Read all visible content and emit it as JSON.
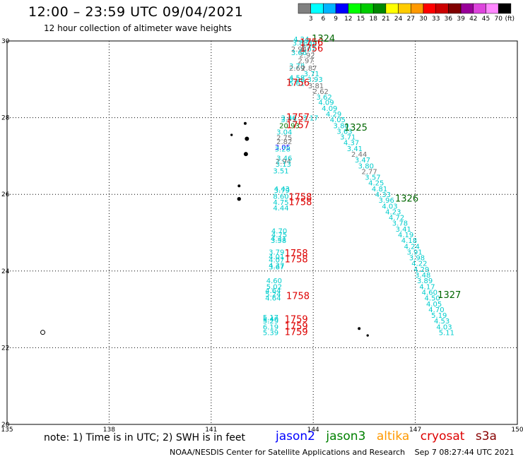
{
  "header": {
    "title": "12:00 – 23:59 UTC 09/04/2021",
    "subtitle": "12 hour collection of altimeter wave heights"
  },
  "footer": {
    "note": "note: 1) Time is in UTC; 2) SWH is in feet",
    "satellites": [
      {
        "name": "jason2",
        "color": "#0000ff"
      },
      {
        "name": "jason3",
        "color": "#008000"
      },
      {
        "name": "altika",
        "color": "#ff9900"
      },
      {
        "name": "cryosat",
        "color": "#dd0000"
      },
      {
        "name": "s3a",
        "color": "#880000"
      }
    ],
    "credit": "NOAA/NESDIS Center for Satellite Applications and Research",
    "timestamp": "Sep  7 08:27:44 UTC 2021"
  },
  "legend": {
    "unit": "(ft)",
    "bins": [
      {
        "label": "3",
        "color": "#808080"
      },
      {
        "label": "6",
        "color": "#00ffff"
      },
      {
        "label": "9",
        "color": "#00b4ff"
      },
      {
        "label": "12",
        "color": "#0000ff"
      },
      {
        "label": "15",
        "color": "#00ff00"
      },
      {
        "label": "18",
        "color": "#00cc00"
      },
      {
        "label": "21",
        "color": "#008800"
      },
      {
        "label": "24",
        "color": "#ffff00"
      },
      {
        "label": "27",
        "color": "#ffcc00"
      },
      {
        "label": "30",
        "color": "#ff9900"
      },
      {
        "label": "33",
        "color": "#ff0000"
      },
      {
        "label": "36",
        "color": "#cc0000"
      },
      {
        "label": "39",
        "color": "#800000"
      },
      {
        "label": "42",
        "color": "#990099"
      },
      {
        "label": "45",
        "color": "#dd44dd"
      },
      {
        "label": "70",
        "color": "#ff88ff"
      },
      {
        "label": "",
        "color": "#000000"
      }
    ]
  },
  "colors": {
    "cyan": "#00cccc",
    "gray": "#707070",
    "red": "#dd0000",
    "green": "#007700",
    "blue": "#0000ff",
    "darkgreen": "#006600"
  },
  "chart_data": {
    "type": "scatter",
    "xlim": [
      135,
      150
    ],
    "ylim": [
      20,
      30
    ],
    "xticks": [
      135,
      138,
      141,
      144,
      147,
      150
    ],
    "yticks": [
      20,
      22,
      24,
      26,
      28,
      30
    ],
    "grid": true,
    "points": [
      {
        "x": 143.65,
        "y": 29.98,
        "v": "4.24",
        "c": "cyan"
      },
      {
        "x": 143.62,
        "y": 29.88,
        "v": "3.83",
        "c": "cyan"
      },
      {
        "x": 143.88,
        "y": 29.85,
        "v": "3.45",
        "c": "cyan"
      },
      {
        "x": 143.85,
        "y": 29.72,
        "v": "4.01",
        "c": "cyan"
      },
      {
        "x": 143.58,
        "y": 29.72,
        "v": "2.94",
        "c": "gray"
      },
      {
        "x": 143.82,
        "y": 29.57,
        "v": "2.92",
        "c": "gray"
      },
      {
        "x": 143.58,
        "y": 29.63,
        "v": "3.66",
        "c": "cyan"
      },
      {
        "x": 143.78,
        "y": 29.42,
        "v": "2.97",
        "c": "gray"
      },
      {
        "x": 143.52,
        "y": 29.28,
        "v": "3.78",
        "c": "cyan"
      },
      {
        "x": 143.52,
        "y": 29.23,
        "v": "2.69",
        "c": "gray"
      },
      {
        "x": 143.88,
        "y": 29.23,
        "v": "2.87",
        "c": "gray"
      },
      {
        "x": 143.95,
        "y": 29.08,
        "v": "3.71",
        "c": "cyan"
      },
      {
        "x": 143.52,
        "y": 28.98,
        "v": "4.58",
        "c": "cyan"
      },
      {
        "x": 143.52,
        "y": 28.93,
        "v": "3.26",
        "c": "cyan"
      },
      {
        "x": 144.05,
        "y": 28.93,
        "v": "3.93",
        "c": "cyan"
      },
      {
        "x": 143.52,
        "y": 28.83,
        "v": "5.61",
        "c": "cyan"
      },
      {
        "x": 144.08,
        "y": 28.77,
        "v": "3.81",
        "c": "gray"
      },
      {
        "x": 144.22,
        "y": 28.62,
        "v": "2.62",
        "c": "gray"
      },
      {
        "x": 144.32,
        "y": 28.47,
        "v": "3.62",
        "c": "cyan"
      },
      {
        "x": 143.28,
        "y": 27.93,
        "v": "3.46",
        "c": "cyan"
      },
      {
        "x": 143.28,
        "y": 27.88,
        "v": "3.75",
        "c": "cyan"
      },
      {
        "x": 143.92,
        "y": 27.93,
        "v": "3.17",
        "c": "cyan"
      },
      {
        "x": 144.38,
        "y": 28.33,
        "v": "4.09",
        "c": "cyan"
      },
      {
        "x": 144.48,
        "y": 28.18,
        "v": "4.09",
        "c": "cyan"
      },
      {
        "x": 143.3,
        "y": 27.73,
        "v": "20.93",
        "c": "green"
      },
      {
        "x": 144.6,
        "y": 28.03,
        "v": "4.29",
        "c": "cyan"
      },
      {
        "x": 144.72,
        "y": 27.88,
        "v": "4.05",
        "c": "cyan"
      },
      {
        "x": 143.15,
        "y": 27.56,
        "v": "3.04",
        "c": "cyan"
      },
      {
        "x": 144.82,
        "y": 27.73,
        "v": "3.80",
        "c": "cyan"
      },
      {
        "x": 143.15,
        "y": 27.41,
        "v": "2.75",
        "c": "gray"
      },
      {
        "x": 144.92,
        "y": 27.58,
        "v": "3.63",
        "c": "cyan"
      },
      {
        "x": 143.15,
        "y": 27.31,
        "v": "2.82",
        "c": "gray"
      },
      {
        "x": 143.1,
        "y": 27.16,
        "v": "3.05",
        "c": "blue"
      },
      {
        "x": 143.1,
        "y": 27.12,
        "v": "3.28",
        "c": "cyan"
      },
      {
        "x": 145.02,
        "y": 27.43,
        "v": "3.71",
        "c": "cyan"
      },
      {
        "x": 145.12,
        "y": 27.28,
        "v": "4.37",
        "c": "cyan"
      },
      {
        "x": 145.22,
        "y": 27.13,
        "v": "3.41",
        "c": "cyan"
      },
      {
        "x": 143.15,
        "y": 26.88,
        "v": "3.46",
        "c": "cyan"
      },
      {
        "x": 143.12,
        "y": 26.8,
        "v": "2.94",
        "c": "gray"
      },
      {
        "x": 145.35,
        "y": 26.98,
        "v": "2.44",
        "c": "gray"
      },
      {
        "x": 143.12,
        "y": 26.72,
        "v": "3.13",
        "c": "cyan"
      },
      {
        "x": 145.45,
        "y": 26.83,
        "v": "3.47",
        "c": "cyan"
      },
      {
        "x": 143.05,
        "y": 26.55,
        "v": "3.51",
        "c": "cyan"
      },
      {
        "x": 145.55,
        "y": 26.68,
        "v": "3.80",
        "c": "cyan"
      },
      {
        "x": 145.65,
        "y": 26.53,
        "v": "2.77",
        "c": "gray"
      },
      {
        "x": 145.75,
        "y": 26.38,
        "v": "3.57",
        "c": "cyan"
      },
      {
        "x": 143.08,
        "y": 26.08,
        "v": "4.43",
        "c": "cyan"
      },
      {
        "x": 143.08,
        "y": 26.04,
        "v": "3.79",
        "c": "cyan"
      },
      {
        "x": 145.85,
        "y": 26.23,
        "v": "4.25",
        "c": "cyan"
      },
      {
        "x": 143.05,
        "y": 25.88,
        "v": "8.60",
        "c": "cyan"
      },
      {
        "x": 145.95,
        "y": 26.08,
        "v": "4.81",
        "c": "cyan"
      },
      {
        "x": 143.05,
        "y": 25.73,
        "v": "4.75",
        "c": "cyan"
      },
      {
        "x": 146.05,
        "y": 25.93,
        "v": "4.33",
        "c": "cyan"
      },
      {
        "x": 146.15,
        "y": 25.78,
        "v": "3.96",
        "c": "cyan"
      },
      {
        "x": 143.05,
        "y": 25.58,
        "v": "4.44",
        "c": "cyan"
      },
      {
        "x": 146.25,
        "y": 25.63,
        "v": "4.03",
        "c": "cyan"
      },
      {
        "x": 146.35,
        "y": 25.48,
        "v": "4.23",
        "c": "cyan"
      },
      {
        "x": 143.0,
        "y": 24.98,
        "v": "4.70",
        "c": "cyan"
      },
      {
        "x": 146.45,
        "y": 25.33,
        "v": "4.72",
        "c": "cyan"
      },
      {
        "x": 143.0,
        "y": 24.88,
        "v": "4.75",
        "c": "cyan"
      },
      {
        "x": 146.55,
        "y": 25.18,
        "v": "3.78",
        "c": "cyan"
      },
      {
        "x": 142.98,
        "y": 24.78,
        "v": "4.31",
        "c": "cyan"
      },
      {
        "x": 142.98,
        "y": 24.73,
        "v": "3.58",
        "c": "cyan"
      },
      {
        "x": 146.65,
        "y": 25.03,
        "v": "3.41",
        "c": "cyan"
      },
      {
        "x": 146.72,
        "y": 24.88,
        "v": "4.19",
        "c": "cyan"
      },
      {
        "x": 142.92,
        "y": 24.43,
        "v": "3.79",
        "c": "cyan"
      },
      {
        "x": 146.82,
        "y": 24.73,
        "v": "4.18",
        "c": "cyan"
      },
      {
        "x": 142.92,
        "y": 24.31,
        "v": "4.01",
        "c": "cyan"
      },
      {
        "x": 146.9,
        "y": 24.58,
        "v": "4.24",
        "c": "cyan"
      },
      {
        "x": 142.92,
        "y": 24.23,
        "v": "4.07",
        "c": "cyan"
      },
      {
        "x": 146.98,
        "y": 24.43,
        "v": "3.91",
        "c": "cyan"
      },
      {
        "x": 142.92,
        "y": 24.08,
        "v": "4.37",
        "c": "cyan"
      },
      {
        "x": 142.92,
        "y": 24.04,
        "v": "3.67",
        "c": "cyan"
      },
      {
        "x": 147.05,
        "y": 24.28,
        "v": "3.98",
        "c": "cyan"
      },
      {
        "x": 147.12,
        "y": 24.13,
        "v": "4.22",
        "c": "cyan"
      },
      {
        "x": 142.85,
        "y": 23.68,
        "v": "4.60",
        "c": "cyan"
      },
      {
        "x": 147.18,
        "y": 23.98,
        "v": "4.29",
        "c": "cyan"
      },
      {
        "x": 142.85,
        "y": 23.53,
        "v": "5.02",
        "c": "cyan"
      },
      {
        "x": 147.22,
        "y": 23.83,
        "v": "3.48",
        "c": "cyan"
      },
      {
        "x": 142.82,
        "y": 23.43,
        "v": "4.64",
        "c": "cyan"
      },
      {
        "x": 147.28,
        "y": 23.68,
        "v": "3.89",
        "c": "cyan"
      },
      {
        "x": 142.82,
        "y": 23.33,
        "v": "5.24",
        "c": "cyan"
      },
      {
        "x": 147.35,
        "y": 23.53,
        "v": "4.17",
        "c": "cyan"
      },
      {
        "x": 142.82,
        "y": 23.23,
        "v": "4.64",
        "c": "cyan"
      },
      {
        "x": 147.42,
        "y": 23.38,
        "v": "4.60",
        "c": "cyan"
      },
      {
        "x": 147.5,
        "y": 23.23,
        "v": "4.50",
        "c": "cyan"
      },
      {
        "x": 147.55,
        "y": 23.08,
        "v": "4.05",
        "c": "cyan"
      },
      {
        "x": 147.62,
        "y": 22.93,
        "v": "4.70",
        "c": "cyan"
      },
      {
        "x": 142.75,
        "y": 22.73,
        "v": "5.17",
        "c": "cyan"
      },
      {
        "x": 142.75,
        "y": 22.68,
        "v": "5.40",
        "c": "cyan"
      },
      {
        "x": 142.75,
        "y": 22.63,
        "v": "5.29",
        "c": "cyan"
      },
      {
        "x": 147.7,
        "y": 22.78,
        "v": "5.19",
        "c": "cyan"
      },
      {
        "x": 147.78,
        "y": 22.63,
        "v": "4.53",
        "c": "cyan"
      },
      {
        "x": 142.75,
        "y": 22.48,
        "v": "6.19",
        "c": "cyan"
      },
      {
        "x": 147.85,
        "y": 22.48,
        "v": "4.03",
        "c": "cyan"
      },
      {
        "x": 142.75,
        "y": 22.33,
        "v": "5.39",
        "c": "cyan"
      },
      {
        "x": 147.92,
        "y": 22.33,
        "v": "5.11",
        "c": "cyan"
      }
    ],
    "times": [
      {
        "x": 144.3,
        "y": 29.98,
        "v": "1324",
        "c": "darkgreen"
      },
      {
        "x": 143.95,
        "y": 29.88,
        "v": "1756",
        "c": "red"
      },
      {
        "x": 143.95,
        "y": 29.72,
        "v": "1756",
        "c": "red"
      },
      {
        "x": 143.55,
        "y": 28.83,
        "v": "1756",
        "c": "red"
      },
      {
        "x": 143.55,
        "y": 27.93,
        "v": "1757",
        "c": "red"
      },
      {
        "x": 143.55,
        "y": 27.73,
        "v": "1757",
        "c": "red"
      },
      {
        "x": 145.25,
        "y": 27.66,
        "v": "1325",
        "c": "darkgreen"
      },
      {
        "x": 143.62,
        "y": 25.85,
        "v": "1758",
        "c": "red"
      },
      {
        "x": 143.62,
        "y": 25.72,
        "v": "1758",
        "c": "red"
      },
      {
        "x": 146.75,
        "y": 25.81,
        "v": "1326",
        "c": "darkgreen"
      },
      {
        "x": 143.5,
        "y": 24.38,
        "v": "1758",
        "c": "red"
      },
      {
        "x": 143.5,
        "y": 24.23,
        "v": "1758",
        "c": "red"
      },
      {
        "x": 143.55,
        "y": 23.27,
        "v": "1758",
        "c": "red"
      },
      {
        "x": 148.0,
        "y": 23.3,
        "v": "1327",
        "c": "darkgreen"
      },
      {
        "x": 143.5,
        "y": 22.66,
        "v": "1759",
        "c": "red"
      },
      {
        "x": 143.5,
        "y": 22.48,
        "v": "1759",
        "c": "red"
      },
      {
        "x": 143.5,
        "y": 22.33,
        "v": "1759",
        "c": "red"
      }
    ],
    "islands": [
      {
        "x": 142.0,
        "y": 27.85,
        "r": 1.5
      },
      {
        "x": 141.6,
        "y": 27.55,
        "r": 1.2
      },
      {
        "x": 142.05,
        "y": 27.45,
        "r": 2.5
      },
      {
        "x": 142.02,
        "y": 27.05,
        "r": 2.5
      },
      {
        "x": 141.82,
        "y": 26.22,
        "r": 1.5
      },
      {
        "x": 141.82,
        "y": 25.88,
        "r": 2.2
      },
      {
        "x": 136.05,
        "y": 22.4,
        "r": 3,
        "ring": true
      },
      {
        "x": 145.35,
        "y": 22.5,
        "r": 1.5
      },
      {
        "x": 145.6,
        "y": 22.32,
        "r": 1.2
      }
    ]
  }
}
